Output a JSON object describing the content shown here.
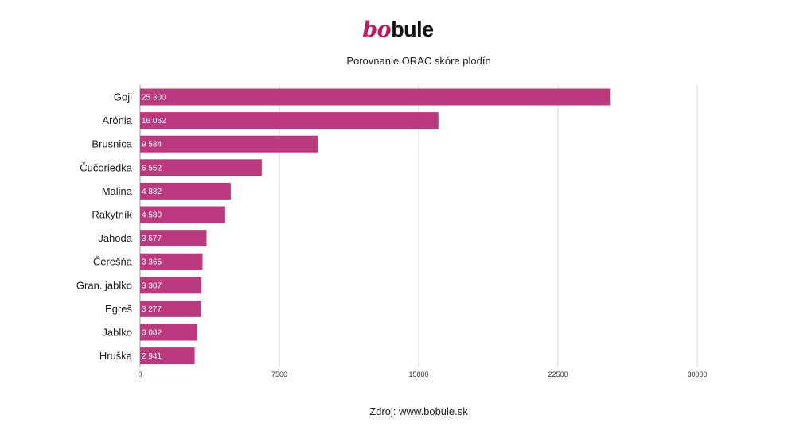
{
  "brand": {
    "logo_part1": "bo",
    "logo_part2": "bule"
  },
  "footer": {
    "source": "Zdroj: www.bobule.sk"
  },
  "colors": {
    "bar": "#bb3a7d",
    "grid": "#d9d9d9",
    "axis": "#9a9a9a"
  },
  "chart_data": {
    "type": "bar",
    "orientation": "horizontal",
    "title": "Porovnanie ORAC skóre plodín",
    "xlabel": "",
    "ylabel": "",
    "categories": [
      "Goji",
      "Arónia",
      "Brusnica",
      "Čučoriedka",
      "Malina",
      "Rakytník",
      "Jahoda",
      "Čerešňa",
      "Gran. jablko",
      "Egreš",
      "Jablko",
      "Hruška"
    ],
    "values": [
      25300,
      16062,
      9584,
      6552,
      4882,
      4580,
      3577,
      3365,
      3307,
      3277,
      3082,
      2941
    ],
    "value_labels": [
      "25 300",
      "16 062",
      "9 584",
      "6 552",
      "4 882",
      "4 580",
      "3 577",
      "3 365",
      "3 307",
      "3 277",
      "3 082",
      "2 941"
    ],
    "xticks": [
      "0",
      "7500",
      "15000",
      "22500",
      "30000"
    ],
    "xtick_values": [
      0,
      7500,
      15000,
      22500,
      30000
    ],
    "xlim": [
      0,
      30000
    ],
    "grid": true,
    "legend": "none"
  }
}
